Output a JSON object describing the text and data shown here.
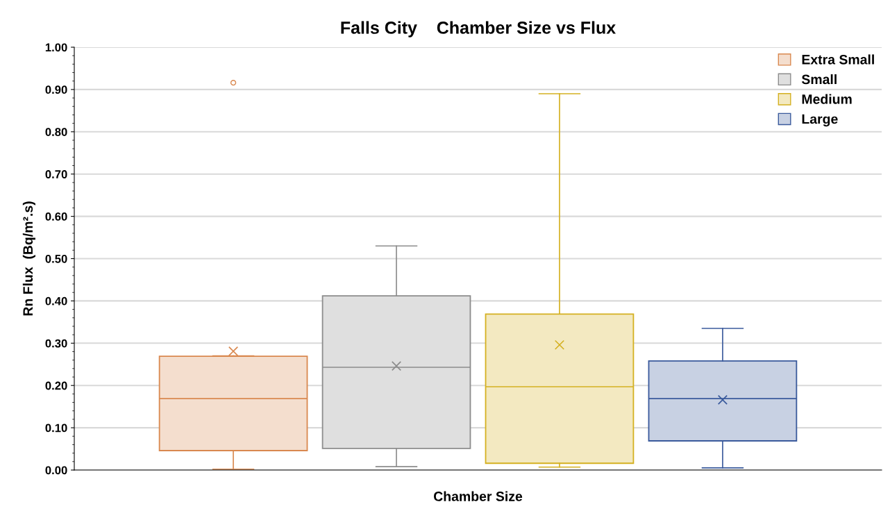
{
  "chart_data": {
    "type": "box",
    "title": "Falls City    Chamber Size vs Flux",
    "xlabel": "Chamber Size",
    "ylabel": "Rn Flux  (Bq/m².s)",
    "categories": [
      null
    ],
    "ylim": [
      0,
      1
    ],
    "yticks": [
      {
        "value": 0,
        "label": "0.00"
      },
      {
        "value": 0.1,
        "label": "0.10"
      },
      {
        "value": 0.2,
        "label": "0.20"
      },
      {
        "value": 0.3,
        "label": "0.30"
      },
      {
        "value": 0.4,
        "label": "0.40"
      },
      {
        "value": 0.5,
        "label": "0.50"
      },
      {
        "value": 0.6,
        "label": "0.60"
      },
      {
        "value": 0.7,
        "label": "0.70"
      },
      {
        "value": 0.8,
        "label": "0.80"
      },
      {
        "value": 0.9,
        "label": "0.90"
      },
      {
        "value": 1,
        "label": "1.00"
      }
    ],
    "grid": "y",
    "legend": "top right",
    "tick_labels": "y",
    "series": [
      {
        "name": "Extra Small",
        "color": "#d9884f",
        "boxes": [
          {
            "low": 0.002,
            "q1": 0.046,
            "median": 0.169,
            "q3": 0.269,
            "high": 0.27,
            "mean": 0.281,
            "outliers": [
              0.916
            ]
          }
        ]
      },
      {
        "name": "Small",
        "color": "#8c8c8c",
        "boxes": [
          {
            "low": 0.008,
            "q1": 0.051,
            "median": 0.243,
            "q3": 0.412,
            "high": 0.53,
            "mean": 0.246
          }
        ]
      },
      {
        "name": "Medium",
        "color": "#d4b020",
        "boxes": [
          {
            "low": 0.007,
            "q1": 0.016,
            "median": 0.197,
            "q3": 0.369,
            "high": 0.89,
            "mean": 0.296
          }
        ]
      },
      {
        "name": "Large",
        "color": "#3a5a9c",
        "boxes": [
          {
            "low": 0.005,
            "q1": 0.069,
            "median": 0.169,
            "q3": 0.258,
            "high": 0.335,
            "mean": 0.166
          }
        ]
      }
    ]
  }
}
